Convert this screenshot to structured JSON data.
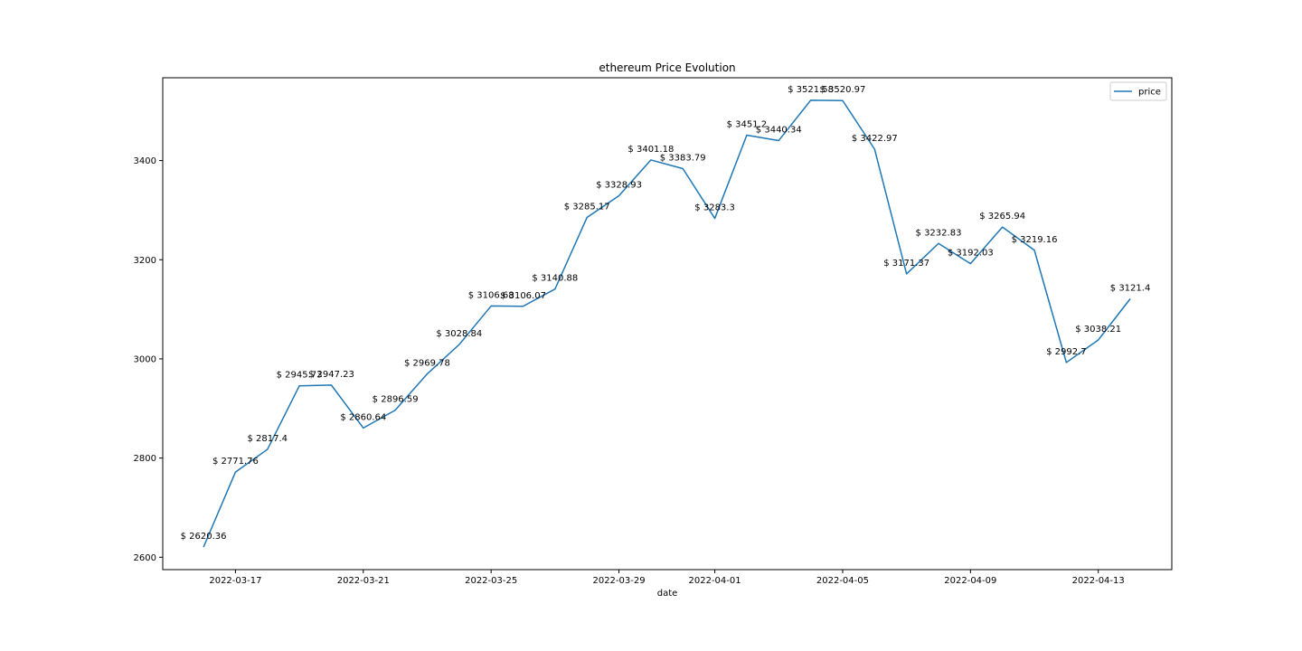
{
  "chart_data": {
    "type": "line",
    "title": "ethereum Price Evolution",
    "xlabel": "date",
    "ylabel": "",
    "x": [
      "2022-03-16",
      "2022-03-17",
      "2022-03-18",
      "2022-03-19",
      "2022-03-20",
      "2022-03-21",
      "2022-03-22",
      "2022-03-23",
      "2022-03-24",
      "2022-03-25",
      "2022-03-26",
      "2022-03-27",
      "2022-03-28",
      "2022-03-29",
      "2022-03-30",
      "2022-03-31",
      "2022-04-01",
      "2022-04-02",
      "2022-04-03",
      "2022-04-04",
      "2022-04-05",
      "2022-04-06",
      "2022-04-07",
      "2022-04-08",
      "2022-04-09",
      "2022-04-10",
      "2022-04-11",
      "2022-04-12",
      "2022-04-13",
      "2022-04-14"
    ],
    "series": [
      {
        "name": "price",
        "color": "#1f77b4",
        "values": [
          2620.36,
          2771.76,
          2817.4,
          2945.73,
          2947.23,
          2860.64,
          2896.59,
          2969.78,
          3028.84,
          3106.68,
          3106.07,
          3140.88,
          3285.17,
          3328.93,
          3401.18,
          3383.79,
          3283.3,
          3451.2,
          3440.34,
          3521.58,
          3520.97,
          3422.97,
          3171.37,
          3232.83,
          3192.03,
          3265.94,
          3219.16,
          2992.7,
          3038.21,
          3121.4
        ]
      }
    ],
    "data_labels": [
      "$ 2620.36",
      "$ 2771.76",
      "$ 2817.4",
      "$ 2945.73",
      "$ 2947.23",
      "$ 2860.64",
      "$ 2896.59",
      "$ 2969.78",
      "$ 3028.84",
      "$ 3106.68",
      "$ 3106.07",
      "$ 3140.88",
      "$ 3285.17",
      "$ 3328.93",
      "$ 3401.18",
      "$ 3383.79",
      "$ 3283.3",
      "$ 3451.2",
      "$ 3440.34",
      "$ 3521.58",
      "$ 3520.97",
      "$ 3422.97",
      "$ 3171.37",
      "$ 3232.83",
      "$ 3192.03",
      "$ 3265.94",
      "$ 3219.16",
      "$ 2992.7",
      "$ 3038.21",
      "$ 3121.4"
    ],
    "x_ticks": [
      "2022-03-17",
      "2022-03-21",
      "2022-03-25",
      "2022-03-29",
      "2022-04-01",
      "2022-04-05",
      "2022-04-09",
      "2022-04-13"
    ],
    "y_ticks": [
      2600,
      2800,
      3000,
      3200,
      3400
    ],
    "xlim": [
      "2022-03-14T17:24:00",
      "2022-04-15T07:12:00"
    ],
    "ylim": [
      2575,
      3567
    ],
    "grid": false,
    "legend_position": "top-right"
  }
}
